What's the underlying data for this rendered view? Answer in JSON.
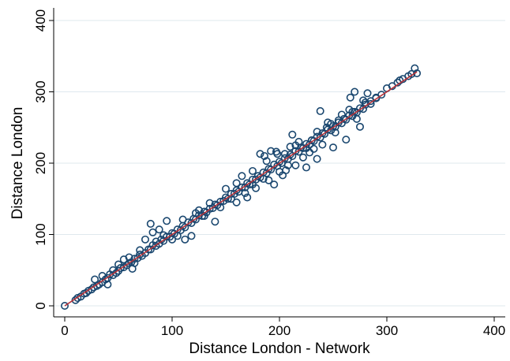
{
  "chart_data": {
    "type": "scatter",
    "title": "",
    "xlabel": "Distance London - Network",
    "ylabel": "Distance London",
    "xlim": [
      -10,
      410
    ],
    "ylim": [
      -15,
      412
    ],
    "xticks": [
      0,
      100,
      200,
      300,
      400
    ],
    "yticks": [
      0,
      100,
      200,
      300,
      400
    ],
    "grid": "horizontal",
    "legend": "none",
    "colors": {
      "marker": "#1a476f",
      "fit_line": "#b5333a",
      "grid": "#dfe8ee"
    },
    "series": [
      {
        "type": "scatter",
        "values": [
          [
            0,
            0
          ],
          [
            10,
            8
          ],
          [
            12,
            11
          ],
          [
            15,
            13
          ],
          [
            18,
            17
          ],
          [
            20,
            18
          ],
          [
            22,
            21
          ],
          [
            25,
            23
          ],
          [
            27,
            26
          ],
          [
            30,
            28
          ],
          [
            32,
            30
          ],
          [
            35,
            33
          ],
          [
            38,
            37
          ],
          [
            40,
            39
          ],
          [
            42,
            44
          ],
          [
            45,
            43
          ],
          [
            48,
            46
          ],
          [
            50,
            49
          ],
          [
            52,
            53
          ],
          [
            55,
            54
          ],
          [
            58,
            57
          ],
          [
            60,
            60
          ],
          [
            62,
            61
          ],
          [
            65,
            66
          ],
          [
            68,
            67
          ],
          [
            70,
            72
          ],
          [
            72,
            70
          ],
          [
            75,
            74
          ],
          [
            78,
            79
          ],
          [
            80,
            79
          ],
          [
            82,
            85
          ],
          [
            85,
            84
          ],
          [
            88,
            87
          ],
          [
            90,
            93
          ],
          [
            92,
            91
          ],
          [
            95,
            97
          ],
          [
            98,
            97
          ],
          [
            100,
            102
          ],
          [
            102,
            101
          ],
          [
            105,
            107
          ],
          [
            108,
            106
          ],
          [
            110,
            112
          ],
          [
            112,
            110
          ],
          [
            115,
            117
          ],
          [
            118,
            116
          ],
          [
            120,
            122
          ],
          [
            122,
            121
          ],
          [
            125,
            127
          ],
          [
            128,
            126
          ],
          [
            130,
            132
          ],
          [
            132,
            131
          ],
          [
            135,
            136
          ],
          [
            138,
            137
          ],
          [
            140,
            142
          ],
          [
            142,
            141
          ],
          [
            145,
            146
          ],
          [
            148,
            147
          ],
          [
            150,
            152
          ],
          [
            152,
            150
          ],
          [
            155,
            157
          ],
          [
            158,
            157
          ],
          [
            160,
            162
          ],
          [
            162,
            160
          ],
          [
            165,
            166
          ],
          [
            168,
            166
          ],
          [
            170,
            172
          ],
          [
            172,
            170
          ],
          [
            175,
            177
          ],
          [
            178,
            177
          ],
          [
            180,
            182
          ],
          [
            182,
            180
          ],
          [
            185,
            187
          ],
          [
            188,
            186
          ],
          [
            190,
            192
          ],
          [
            192,
            191
          ],
          [
            195,
            198
          ],
          [
            198,
            196
          ],
          [
            200,
            202
          ],
          [
            202,
            200
          ],
          [
            205,
            207
          ],
          [
            208,
            206
          ],
          [
            210,
            212
          ],
          [
            212,
            210
          ],
          [
            215,
            217
          ],
          [
            218,
            216
          ],
          [
            220,
            222
          ],
          [
            222,
            221
          ],
          [
            225,
            227
          ],
          [
            228,
            226
          ],
          [
            230,
            232
          ],
          [
            232,
            231
          ],
          [
            235,
            237
          ],
          [
            238,
            236
          ],
          [
            240,
            242
          ],
          [
            242,
            241
          ],
          [
            245,
            247
          ],
          [
            248,
            246
          ],
          [
            250,
            252
          ],
          [
            252,
            251
          ],
          [
            255,
            257
          ],
          [
            258,
            256
          ],
          [
            260,
            262
          ],
          [
            262,
            261
          ],
          [
            265,
            267
          ],
          [
            268,
            266
          ],
          [
            270,
            272
          ],
          [
            272,
            271
          ],
          [
            275,
            277
          ],
          [
            278,
            276
          ],
          [
            280,
            282
          ],
          [
            285,
            287
          ],
          [
            290,
            291
          ],
          [
            295,
            296
          ],
          [
            300,
            305
          ],
          [
            305,
            308
          ],
          [
            310,
            313
          ],
          [
            312,
            316
          ],
          [
            315,
            318
          ],
          [
            320,
            322
          ],
          [
            323,
            325
          ],
          [
            326,
            333
          ],
          [
            328,
            326
          ],
          [
            28,
            37
          ],
          [
            40,
            30
          ],
          [
            55,
            65
          ],
          [
            63,
            52
          ],
          [
            75,
            93
          ],
          [
            80,
            115
          ],
          [
            82,
            103
          ],
          [
            88,
            107
          ],
          [
            95,
            119
          ],
          [
            112,
            93
          ],
          [
            118,
            98
          ],
          [
            122,
            130
          ],
          [
            140,
            118
          ],
          [
            150,
            164
          ],
          [
            160,
            145
          ],
          [
            165,
            182
          ],
          [
            170,
            152
          ],
          [
            175,
            189
          ],
          [
            182,
            213
          ],
          [
            186,
            210
          ],
          [
            190,
            176
          ],
          [
            192,
            217
          ],
          [
            197,
            216
          ],
          [
            200,
            188
          ],
          [
            203,
            183
          ],
          [
            206,
            190
          ],
          [
            210,
            223
          ],
          [
            215,
            197
          ],
          [
            218,
            230
          ],
          [
            225,
            194
          ],
          [
            228,
            215
          ],
          [
            230,
            232
          ],
          [
            235,
            206
          ],
          [
            238,
            273
          ],
          [
            240,
            226
          ],
          [
            245,
            257
          ],
          [
            250,
            222
          ],
          [
            255,
            260
          ],
          [
            262,
            233
          ],
          [
            266,
            292
          ],
          [
            270,
            300
          ],
          [
            275,
            251
          ],
          [
            278,
            288
          ],
          [
            282,
            298
          ],
          [
            290,
            292
          ],
          [
            160,
            172
          ],
          [
            168,
            158
          ],
          [
            178,
            165
          ],
          [
            188,
            203
          ],
          [
            198,
            213
          ],
          [
            208,
            197
          ],
          [
            185,
            178
          ],
          [
            195,
            170
          ],
          [
            212,
            240
          ],
          [
            222,
            208
          ],
          [
            232,
            220
          ],
          [
            244,
            250
          ],
          [
            252,
            243
          ],
          [
            258,
            268
          ],
          [
            265,
            275
          ],
          [
            272,
            262
          ],
          [
            280,
            285
          ],
          [
            130,
            126
          ],
          [
            135,
            144
          ],
          [
            145,
            138
          ],
          [
            110,
            121
          ],
          [
            100,
            93
          ],
          [
            92,
            99
          ],
          [
            70,
            78
          ],
          [
            60,
            68
          ],
          [
            50,
            58
          ],
          [
            35,
            42
          ],
          [
            45,
            50
          ],
          [
            65,
            60
          ],
          [
            85,
            90
          ],
          [
            105,
            98
          ],
          [
            125,
            134
          ],
          [
            155,
            150
          ],
          [
            175,
            170
          ],
          [
            205,
            213
          ],
          [
            215,
            225
          ],
          [
            225,
            221
          ],
          [
            235,
            244
          ],
          [
            248,
            255
          ],
          [
            268,
            272
          ],
          [
            285,
            283
          ]
        ]
      },
      {
        "type": "line",
        "name": "",
        "values": [
          [
            0,
            0
          ],
          [
            328,
            328
          ]
        ]
      }
    ]
  }
}
